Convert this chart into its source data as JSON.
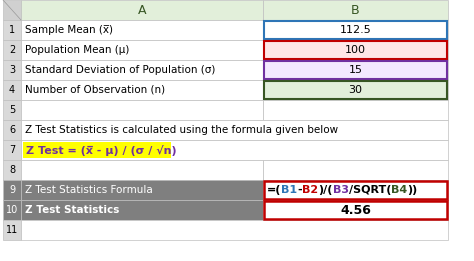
{
  "rows": [
    {
      "row": 1,
      "label": "Sample Mean (x̅)",
      "value": "112.5",
      "val_bg": "#ffffff",
      "val_border": "#2e75b6",
      "label_bg": "#ffffff"
    },
    {
      "row": 2,
      "label": "Population Mean (μ)",
      "value": "100",
      "val_bg": "#ffe6e6",
      "val_border": "#c00000",
      "label_bg": "#ffffff"
    },
    {
      "row": 3,
      "label": "Standard Deviation of Population (σ)",
      "value": "15",
      "val_bg": "#f3e8ff",
      "val_border": "#7030a0",
      "label_bg": "#ffffff"
    },
    {
      "row": 4,
      "label": "Number of Observation (n)",
      "value": "30",
      "val_bg": "#e2efda",
      "val_border": "#375623",
      "label_bg": "#ffffff"
    }
  ],
  "row6_text": "Z Test Statistics is calculated using the formula given below",
  "row7_formula": "Z Test = (x̅ - μ) / (σ / √n)",
  "row9_label": "Z Test Statistics Formula",
  "row9_formula_parts": [
    {
      "text": "=(",
      "color": "#000000"
    },
    {
      "text": "B1",
      "color": "#2e75b6"
    },
    {
      "text": "-",
      "color": "#000000"
    },
    {
      "text": "B2",
      "color": "#c00000"
    },
    {
      "text": ")/(",
      "color": "#000000"
    },
    {
      "text": "B3",
      "color": "#7030a0"
    },
    {
      "text": "/SQRT(",
      "color": "#000000"
    },
    {
      "text": "B4",
      "color": "#375623"
    },
    {
      "text": "))",
      "color": "#000000"
    }
  ],
  "row10_label": "Z Test Statistics",
  "row10_value": "4.56",
  "header_col_a": "A",
  "header_col_b": "B",
  "dark_row_bg": "#7f7f7f",
  "dark_row_fg": "#ffffff",
  "formula_bg": "#ffff00",
  "result_border": "#c00000",
  "row_num_bg": "#d9d9d9",
  "col_header_bg": "#e2efda",
  "col_header_fg": "#375623",
  "grid_color": "#bfbfbf",
  "thick_line_color": "#404040"
}
